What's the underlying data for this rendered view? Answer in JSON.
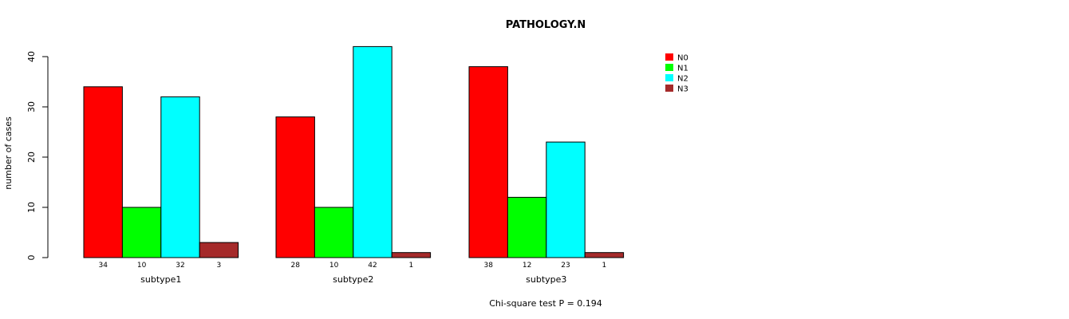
{
  "chart_data": {
    "type": "bar",
    "title": "PATHOLOGY.N",
    "ylabel": "number of cases",
    "xlabel": "",
    "ylim": [
      0,
      40
    ],
    "yticks": [
      0,
      10,
      20,
      30,
      40
    ],
    "categories": [
      "subtype1",
      "subtype2",
      "subtype3"
    ],
    "series": [
      {
        "name": "N0",
        "color": "#ff0000",
        "values": [
          34,
          28,
          38
        ]
      },
      {
        "name": "N1",
        "color": "#00ff00",
        "values": [
          10,
          10,
          12
        ]
      },
      {
        "name": "N2",
        "color": "#00ffff",
        "values": [
          32,
          42,
          23
        ]
      },
      {
        "name": "N3",
        "color": "#a52a2a",
        "values": [
          3,
          1,
          1
        ]
      }
    ],
    "legend_position": "top-right",
    "grid": false,
    "annotation": "Chi-square test P = 0.194"
  }
}
